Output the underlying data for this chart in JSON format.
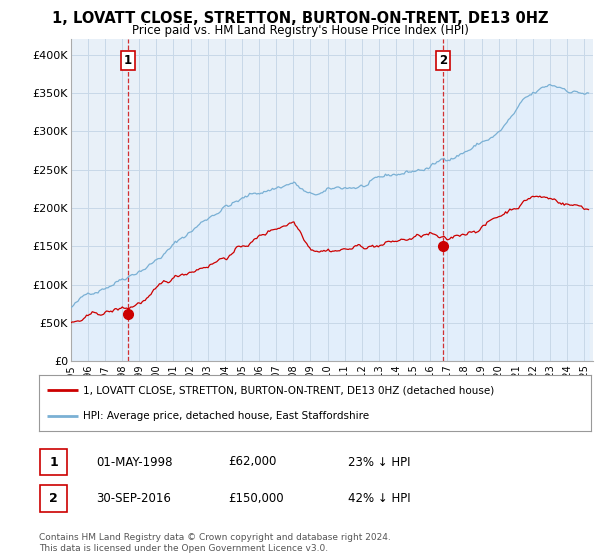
{
  "title": "1, LOVATT CLOSE, STRETTON, BURTON-ON-TRENT, DE13 0HZ",
  "subtitle": "Price paid vs. HM Land Registry's House Price Index (HPI)",
  "ylabel_ticks": [
    "£0",
    "£50K",
    "£100K",
    "£150K",
    "£200K",
    "£250K",
    "£300K",
    "£350K",
    "£400K"
  ],
  "ytick_vals": [
    0,
    50000,
    100000,
    150000,
    200000,
    250000,
    300000,
    350000,
    400000
  ],
  "ylim": [
    0,
    420000
  ],
  "xlim_start": 1995.0,
  "xlim_end": 2025.5,
  "red_line_color": "#cc0000",
  "blue_line_color": "#7ab0d4",
  "blue_fill_color": "#ddeeff",
  "dashed_color": "#cc0000",
  "marker1_x": 1998.33,
  "marker1_y": 62000,
  "marker2_x": 2016.75,
  "marker2_y": 150000,
  "legend_label_red": "1, LOVATT CLOSE, STRETTON, BURTON-ON-TRENT, DE13 0HZ (detached house)",
  "legend_label_blue": "HPI: Average price, detached house, East Staffordshire",
  "table_row1": [
    "1",
    "01-MAY-1998",
    "£62,000",
    "23% ↓ HPI"
  ],
  "table_row2": [
    "2",
    "30-SEP-2016",
    "£150,000",
    "42% ↓ HPI"
  ],
  "footnote": "Contains HM Land Registry data © Crown copyright and database right 2024.\nThis data is licensed under the Open Government Licence v3.0.",
  "background_color": "#ffffff",
  "grid_color": "#c8d8e8",
  "chart_bg_color": "#e8f0f8"
}
